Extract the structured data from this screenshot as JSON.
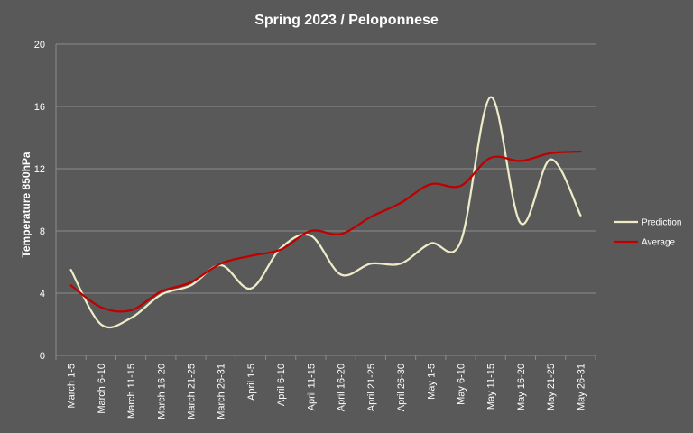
{
  "chart_data": {
    "type": "line",
    "title": "Spring 2023 / Peloponnese",
    "xlabel": "",
    "ylabel": "Temperature 850hPa",
    "ylim": [
      0,
      20
    ],
    "yticks": [
      0,
      4,
      8,
      12,
      16,
      20
    ],
    "grid": true,
    "legend_position": "right",
    "categories": [
      "March 1-5",
      "March 6-10",
      "March 11-15",
      "March 16-20",
      "March 21-25",
      "March 26-31",
      "April 1-5",
      "April 6-10",
      "April 11-15",
      "April 16-20",
      "April 21-25",
      "April 26-30",
      "May 1-5",
      "May 6-10",
      "May 11-15",
      "May 16-20",
      "May 21-25",
      "May 26-31"
    ],
    "series": [
      {
        "name": "Prediction",
        "color": "#eeecc8",
        "values": [
          5.5,
          2.0,
          2.4,
          3.9,
          4.5,
          5.8,
          4.3,
          6.9,
          7.7,
          5.2,
          5.9,
          5.9,
          7.2,
          7.3,
          16.6,
          8.5,
          12.6,
          9.0
        ]
      },
      {
        "name": "Average",
        "color": "#c00000",
        "values": [
          4.5,
          3.1,
          2.9,
          4.1,
          4.7,
          5.9,
          6.4,
          6.8,
          8.0,
          7.8,
          8.9,
          9.8,
          11.0,
          10.9,
          12.7,
          12.5,
          13.0,
          13.1
        ]
      }
    ]
  },
  "colors": {
    "background": "#595959",
    "grid": "#8c8c8c",
    "text": "#ffffff"
  }
}
